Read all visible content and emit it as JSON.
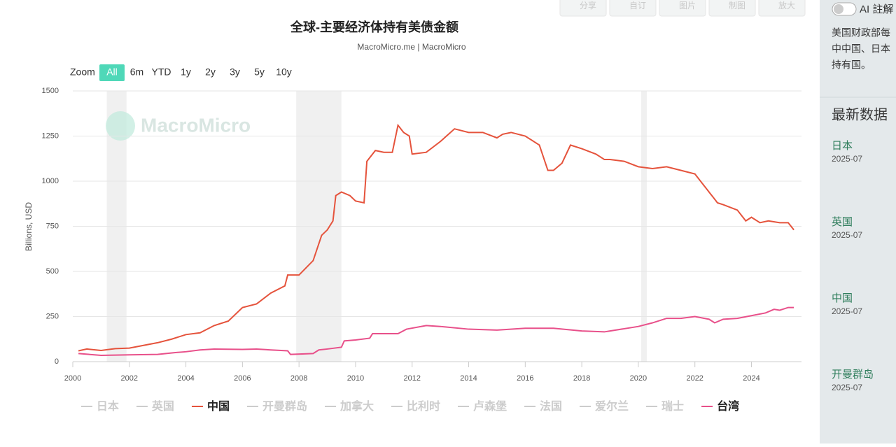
{
  "toolbar": [
    "分享",
    "自订",
    "图片",
    "制图",
    "放大"
  ],
  "zoom": {
    "label": "Zoom",
    "options": [
      "All",
      "6m",
      "YTD",
      "1y",
      "2y",
      "3y",
      "5y",
      "10y"
    ],
    "active": 0
  },
  "sidebar": {
    "ai_toggle": "AI 註解",
    "note_lines": [
      "美国财政部每",
      "中中国、日本",
      "持有国。"
    ],
    "latest_title": "最新数据",
    "latest": [
      {
        "name": "日本",
        "date": "2025-07"
      },
      {
        "name": "英国",
        "date": "2025-07"
      },
      {
        "name": "中国",
        "date": "2025-07"
      },
      {
        "name": "开曼群岛",
        "date": "2025-07"
      }
    ]
  },
  "chart_data": {
    "type": "line",
    "title": "全球-主要经济体持有美债金额",
    "subtitle": "MacroMicro.me | MacroMicro",
    "watermark": "MacroMicro",
    "y_label": "Billions, USD",
    "xlim": [
      2000,
      2025.77
    ],
    "ylim": [
      0,
      1500
    ],
    "xticks": [
      2000,
      2002,
      2004,
      2006,
      2008,
      2010,
      2012,
      2014,
      2016,
      2018,
      2020,
      2022,
      2024
    ],
    "yticks": [
      0,
      250,
      500,
      750,
      1000,
      1250,
      1500
    ],
    "grid": true,
    "shaded_periods": [
      [
        2001.2,
        2001.9
      ],
      [
        2007.9,
        2009.5
      ],
      [
        2020.1,
        2020.3
      ]
    ],
    "series": [
      {
        "name": "日本",
        "color": "#cccccc",
        "visible": false
      },
      {
        "name": "英国",
        "color": "#cccccc",
        "visible": false
      },
      {
        "name": "中国",
        "color": "#e5533c",
        "visible": true,
        "x": [
          2000.2,
          2000.5,
          2001.0,
          2001.5,
          2002.0,
          2002.5,
          2003.0,
          2003.5,
          2004.0,
          2004.5,
          2005.0,
          2005.5,
          2006.0,
          2006.5,
          2007.0,
          2007.5,
          2007.6,
          2008.0,
          2008.5,
          2008.8,
          2009.0,
          2009.2,
          2009.3,
          2009.5,
          2009.8,
          2010.0,
          2010.3,
          2010.4,
          2010.7,
          2011.0,
          2011.3,
          2011.5,
          2011.7,
          2011.9,
          2012.0,
          2012.5,
          2013.0,
          2013.5,
          2014.0,
          2014.5,
          2015.0,
          2015.2,
          2015.5,
          2016.0,
          2016.5,
          2016.8,
          2017.0,
          2017.3,
          2017.6,
          2018.0,
          2018.5,
          2018.8,
          2019.0,
          2019.5,
          2020.0,
          2020.5,
          2021.0,
          2021.5,
          2022.0,
          2022.5,
          2022.8,
          2023.0,
          2023.5,
          2023.8,
          2024.0,
          2024.3,
          2024.6,
          2025.0,
          2025.3,
          2025.5
        ],
        "values": [
          60,
          70,
          62,
          72,
          75,
          90,
          105,
          125,
          150,
          160,
          200,
          225,
          300,
          320,
          380,
          420,
          480,
          480,
          560,
          700,
          730,
          780,
          920,
          940,
          920,
          890,
          880,
          1110,
          1170,
          1160,
          1160,
          1310,
          1270,
          1250,
          1150,
          1160,
          1220,
          1290,
          1270,
          1270,
          1240,
          1260,
          1270,
          1250,
          1200,
          1060,
          1060,
          1100,
          1200,
          1180,
          1150,
          1120,
          1120,
          1110,
          1080,
          1070,
          1080,
          1060,
          1040,
          940,
          880,
          870,
          840,
          780,
          800,
          770,
          780,
          770,
          770,
          730
        ]
      },
      {
        "name": "开曼群岛",
        "color": "#cccccc",
        "visible": false
      },
      {
        "name": "加拿大",
        "color": "#cccccc",
        "visible": false
      },
      {
        "name": "比利时",
        "color": "#cccccc",
        "visible": false
      },
      {
        "name": "卢森堡",
        "color": "#cccccc",
        "visible": false
      },
      {
        "name": "法国",
        "color": "#cccccc",
        "visible": false
      },
      {
        "name": "爱尔兰",
        "color": "#cccccc",
        "visible": false
      },
      {
        "name": "瑞士",
        "color": "#cccccc",
        "visible": false
      },
      {
        "name": "台湾",
        "color": "#e8508a",
        "visible": true,
        "x": [
          2000.2,
          2001.0,
          2002.0,
          2003.0,
          2003.6,
          2004.0,
          2004.5,
          2005.0,
          2006.0,
          2006.5,
          2007.0,
          2007.6,
          2007.7,
          2008.5,
          2008.7,
          2009.0,
          2009.5,
          2009.6,
          2010.0,
          2010.5,
          2010.6,
          2011.5,
          2011.8,
          2012.5,
          2013.0,
          2014.0,
          2015.0,
          2016.0,
          2017.0,
          2018.0,
          2018.8,
          2019.0,
          2020.0,
          2020.5,
          2021.0,
          2021.5,
          2022.0,
          2022.5,
          2022.7,
          2023.0,
          2023.5,
          2024.0,
          2024.5,
          2024.8,
          2025.0,
          2025.3,
          2025.5
        ],
        "values": [
          45,
          35,
          38,
          40,
          50,
          55,
          65,
          70,
          68,
          70,
          65,
          60,
          40,
          45,
          65,
          70,
          80,
          115,
          120,
          130,
          155,
          155,
          180,
          200,
          195,
          180,
          175,
          185,
          185,
          170,
          165,
          170,
          195,
          215,
          240,
          240,
          250,
          235,
          215,
          235,
          240,
          255,
          270,
          290,
          285,
          300,
          300
        ]
      }
    ]
  }
}
